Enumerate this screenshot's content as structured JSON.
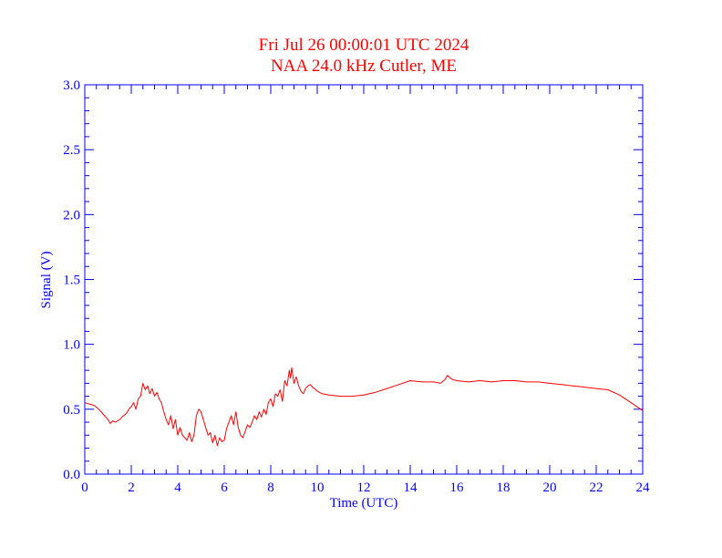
{
  "colors": {
    "axis": "#0000ff",
    "series": "#ff0000",
    "title": "#ff0000",
    "background": "#ffffff"
  },
  "chart_data": {
    "type": "line",
    "title": "Fri Jul 26 00:00:01 UTC 2024",
    "subtitle": "NAA 24.0 kHz Cutler, ME",
    "xlabel": "Time (UTC)",
    "ylabel": "Signal (V)",
    "xlim": [
      0,
      24
    ],
    "ylim": [
      0.0,
      3.0
    ],
    "xticks": [
      0,
      2,
      4,
      6,
      8,
      10,
      12,
      14,
      16,
      18,
      20,
      22,
      24
    ],
    "xtick_labels": [
      "0",
      "2",
      "4",
      "6",
      "8",
      "10",
      "12",
      "14",
      "16",
      "18",
      "20",
      "22",
      "24"
    ],
    "yticks": [
      0.0,
      0.5,
      1.0,
      1.5,
      2.0,
      2.5,
      3.0
    ],
    "ytick_labels": [
      "0.0",
      "0.5",
      "1.0",
      "1.5",
      "2.0",
      "2.5",
      "3.0"
    ],
    "grid": false,
    "series": [
      {
        "x": [
          0.0,
          0.2,
          0.4,
          0.6,
          0.8,
          1.0,
          1.1,
          1.2,
          1.3,
          1.5,
          1.6,
          1.8,
          1.9,
          2.0,
          2.1,
          2.2,
          2.3,
          2.4,
          2.5,
          2.6,
          2.7,
          2.8,
          2.9,
          3.0,
          3.1,
          3.2,
          3.3,
          3.4,
          3.5,
          3.6,
          3.7,
          3.8,
          3.9,
          4.0,
          4.1,
          4.2,
          4.3,
          4.4,
          4.5,
          4.6,
          4.7,
          4.8,
          4.9,
          5.0,
          5.1,
          5.2,
          5.3,
          5.4,
          5.5,
          5.6,
          5.7,
          5.8,
          5.9,
          6.0,
          6.1,
          6.2,
          6.3,
          6.4,
          6.5,
          6.6,
          6.7,
          6.8,
          6.9,
          7.0,
          7.1,
          7.2,
          7.3,
          7.4,
          7.5,
          7.6,
          7.7,
          7.8,
          7.9,
          8.0,
          8.1,
          8.2,
          8.3,
          8.4,
          8.5,
          8.6,
          8.7,
          8.8,
          8.85,
          8.9,
          9.0,
          9.1,
          9.2,
          9.3,
          9.4,
          9.5,
          9.6,
          9.7,
          9.8,
          10.0,
          10.2,
          10.5,
          11.0,
          11.5,
          12.0,
          12.5,
          13.0,
          13.5,
          14.0,
          14.5,
          15.0,
          15.3,
          15.5,
          15.6,
          15.8,
          16.0,
          16.5,
          17.0,
          17.5,
          18.0,
          18.5,
          19.0,
          19.5,
          20.0,
          20.5,
          21.0,
          21.5,
          22.0,
          22.5,
          23.0,
          23.5,
          24.0
        ],
        "values": [
          0.55,
          0.54,
          0.53,
          0.5,
          0.46,
          0.42,
          0.39,
          0.41,
          0.4,
          0.42,
          0.44,
          0.47,
          0.5,
          0.52,
          0.55,
          0.5,
          0.58,
          0.6,
          0.7,
          0.65,
          0.68,
          0.62,
          0.66,
          0.6,
          0.63,
          0.58,
          0.55,
          0.48,
          0.42,
          0.38,
          0.45,
          0.35,
          0.42,
          0.3,
          0.36,
          0.3,
          0.28,
          0.26,
          0.32,
          0.25,
          0.3,
          0.45,
          0.5,
          0.48,
          0.42,
          0.36,
          0.3,
          0.32,
          0.24,
          0.3,
          0.22,
          0.28,
          0.25,
          0.26,
          0.35,
          0.4,
          0.45,
          0.38,
          0.48,
          0.36,
          0.3,
          0.28,
          0.33,
          0.38,
          0.36,
          0.4,
          0.45,
          0.42,
          0.48,
          0.44,
          0.5,
          0.46,
          0.55,
          0.58,
          0.52,
          0.62,
          0.6,
          0.65,
          0.56,
          0.72,
          0.68,
          0.8,
          0.74,
          0.82,
          0.7,
          0.75,
          0.68,
          0.64,
          0.62,
          0.66,
          0.68,
          0.69,
          0.67,
          0.64,
          0.62,
          0.61,
          0.6,
          0.6,
          0.61,
          0.63,
          0.66,
          0.69,
          0.72,
          0.71,
          0.71,
          0.7,
          0.73,
          0.76,
          0.73,
          0.72,
          0.71,
          0.72,
          0.71,
          0.72,
          0.72,
          0.71,
          0.71,
          0.7,
          0.69,
          0.68,
          0.67,
          0.66,
          0.65,
          0.61,
          0.55,
          0.49
        ]
      }
    ]
  }
}
